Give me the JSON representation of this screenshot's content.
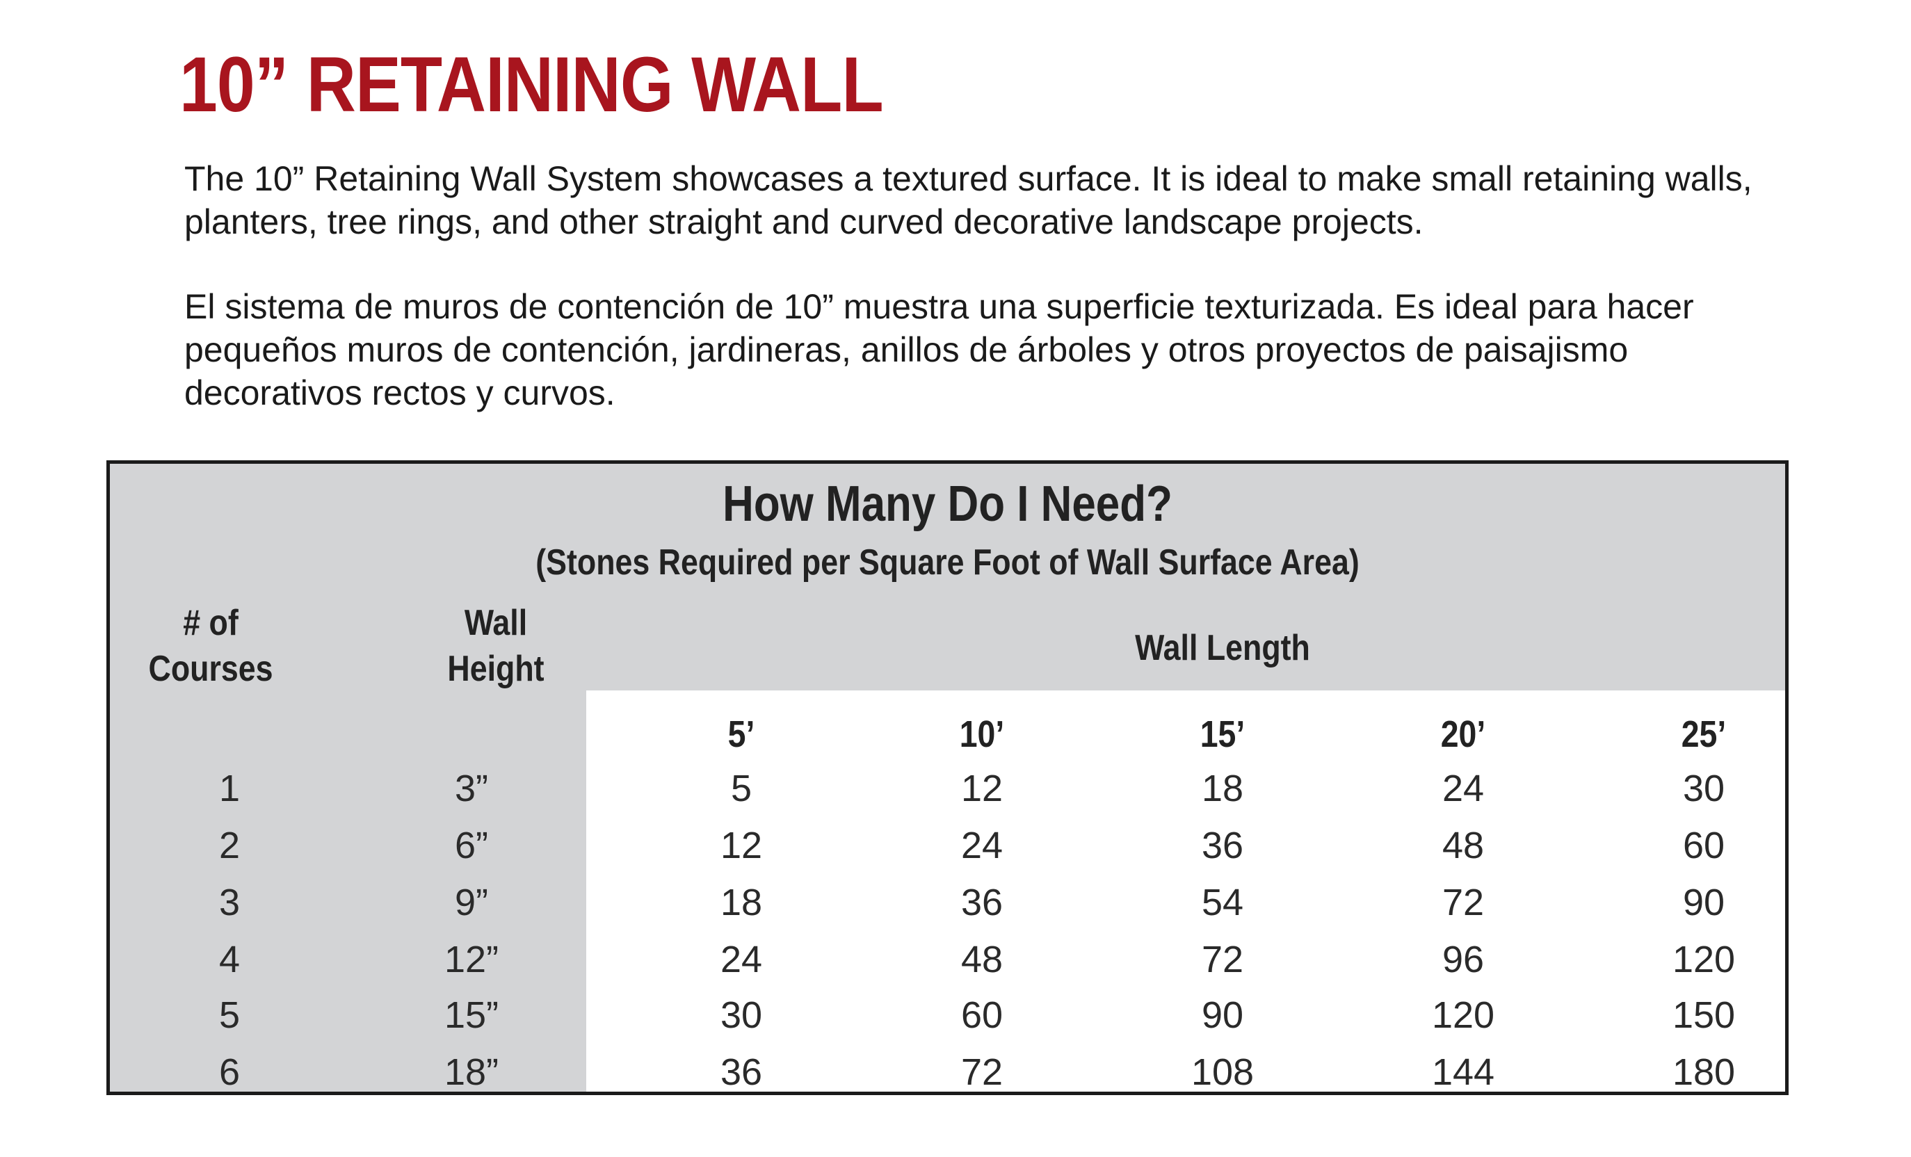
{
  "header": {
    "title": "10” RETAINING WALL"
  },
  "description": {
    "english": "The 10” Retaining Wall System showcases a textured surface. It is ideal to make small retaining walls, planters, tree rings, and other straight and curved decorative landscape projects.",
    "spanish": "El sistema de muros de contención de 10” muestra una superficie texturizada. Es ideal para hacer pequeños muros de contención, jardineras, anillos de árboles y otros proyectos de paisajismo decorativos rectos y curvos."
  },
  "table": {
    "heading": "How Many Do I Need?",
    "subheading": "(Stones Required per Square Foot of Wall Surface Area)",
    "courses_label_line1": "# of",
    "courses_label_line2": "Courses",
    "height_label_line1": "Wall",
    "height_label_line2": "Height",
    "length_label": "Wall Length",
    "length_headers": [
      "5’",
      "10’",
      "15’",
      "20’",
      "25’"
    ],
    "rows": [
      {
        "courses": "1",
        "height": "3”",
        "values": [
          "5",
          "12",
          "18",
          "24",
          "30"
        ]
      },
      {
        "courses": "2",
        "height": "6”",
        "values": [
          "12",
          "24",
          "36",
          "48",
          "60"
        ]
      },
      {
        "courses": "3",
        "height": "9”",
        "values": [
          "18",
          "36",
          "54",
          "72",
          "90"
        ]
      },
      {
        "courses": "4",
        "height": "12”",
        "values": [
          "24",
          "48",
          "72",
          "96",
          "120"
        ]
      },
      {
        "courses": "5",
        "height": "15”",
        "values": [
          "30",
          "60",
          "90",
          "120",
          "150"
        ]
      },
      {
        "courses": "6",
        "height": "18”",
        "values": [
          "36",
          "72",
          "108",
          "144",
          "180"
        ]
      }
    ]
  },
  "colors": {
    "title_red": "#a8151e",
    "panel_gray": "#d3d4d6",
    "border": "#1b1b1b"
  }
}
